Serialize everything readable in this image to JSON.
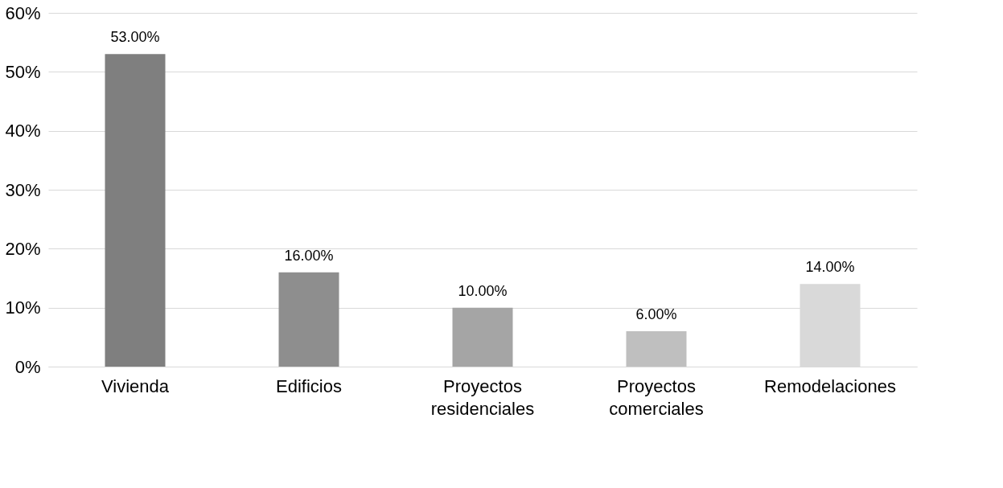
{
  "chart_data": {
    "type": "bar",
    "categories": [
      "Vivienda",
      "Edificios",
      "Proyectos residenciales",
      "Proyectos comerciales",
      "Remodelaciones"
    ],
    "values": [
      53,
      16,
      10,
      6,
      14
    ],
    "colors": [
      "#7f7f7f",
      "#8e8e8e",
      "#a5a5a5",
      "#bfbfbf",
      "#d9d9d9"
    ],
    "value_labels": [
      "53.00%",
      "16.00%",
      "10.00%",
      "6.00%",
      "14.00%"
    ],
    "ylim": [
      0,
      60
    ],
    "yticks": [
      {
        "value": 0,
        "label": "0%"
      },
      {
        "value": 10,
        "label": "10%"
      },
      {
        "value": 20,
        "label": "20%"
      },
      {
        "value": 30,
        "label": "30%"
      },
      {
        "value": 40,
        "label": "40%"
      },
      {
        "value": 50,
        "label": "50%"
      },
      {
        "value": 60,
        "label": "60%"
      }
    ],
    "grid": "y"
  }
}
